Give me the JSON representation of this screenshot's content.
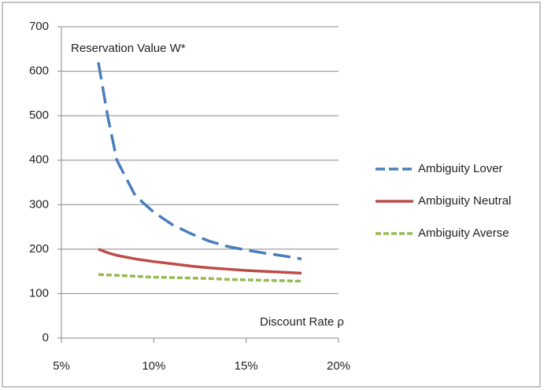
{
  "chart_data": {
    "type": "line",
    "annotations": [
      "Reservation Value W*",
      "Discount Rate ρ"
    ],
    "x": [
      7,
      7.5,
      8,
      9,
      10,
      11,
      12,
      13,
      14,
      15,
      16,
      17,
      18
    ],
    "series": [
      {
        "name": "Ambiguity Lover",
        "color": "#4a7ebb",
        "line_style": "dashed",
        "values": [
          620,
          500,
          400,
          320,
          283,
          255,
          235,
          218,
          206,
          198,
          191,
          185,
          178
        ]
      },
      {
        "name": "Ambiguity Neutral",
        "color": "#be4b48",
        "line_style": "solid",
        "values": [
          200,
          192,
          186,
          178,
          172,
          167,
          162,
          158,
          155,
          152,
          150,
          148,
          146
        ]
      },
      {
        "name": "Ambiguity Averse",
        "color": "#98b954",
        "line_style": "dotted",
        "values": [
          143,
          142,
          141,
          139,
          137,
          136,
          135,
          134,
          132,
          131,
          130,
          129,
          128
        ]
      }
    ],
    "xlim": [
      5,
      20
    ],
    "xticks": [
      {
        "value": 5,
        "label": "5%"
      },
      {
        "value": 10,
        "label": "10%"
      },
      {
        "value": 15,
        "label": "15%"
      },
      {
        "value": 20,
        "label": "20%"
      }
    ],
    "ylim": [
      0,
      700
    ],
    "yticks": [
      0,
      100,
      200,
      300,
      400,
      500,
      600,
      700
    ],
    "grid": true,
    "legend": "right"
  }
}
